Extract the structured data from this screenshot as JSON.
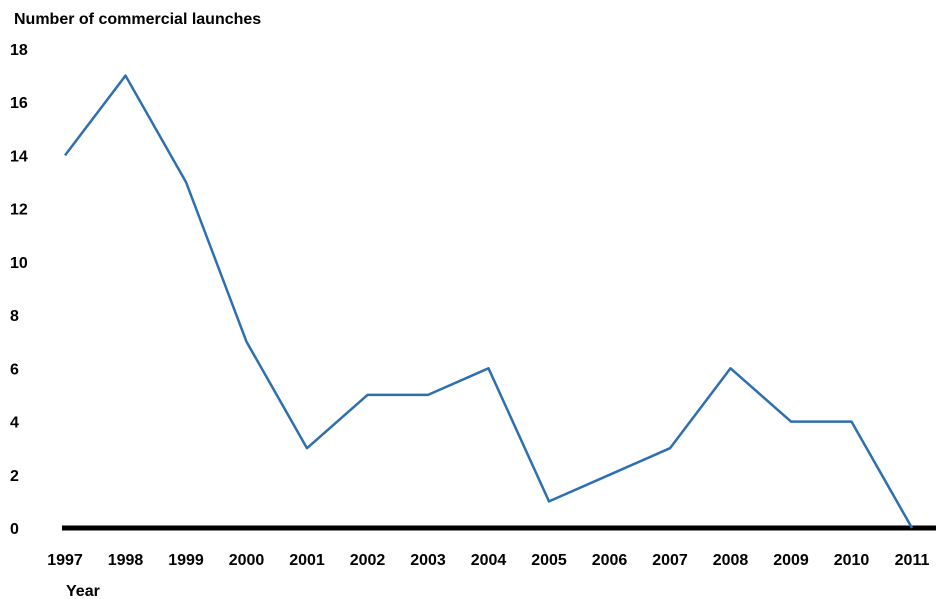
{
  "chart_data": {
    "type": "line",
    "title": "",
    "ylabel": "Number of commercial launches",
    "xlabel": "Year",
    "x": [
      "1997",
      "1998",
      "1999",
      "2000",
      "2001",
      "2002",
      "2003",
      "2004",
      "2005",
      "2006",
      "2007",
      "2008",
      "2009",
      "2010",
      "2011"
    ],
    "series": [
      {
        "values": [
          14,
          17,
          13,
          7,
          3,
          5,
          5,
          6,
          1,
          2,
          3,
          6,
          4,
          4,
          0
        ]
      }
    ],
    "ylim": [
      0,
      18
    ],
    "yticks": [
      "0",
      "2",
      "4",
      "6",
      "8",
      "10",
      "12",
      "14",
      "16",
      "18"
    ],
    "grid": false,
    "legend": "none",
    "colors": {
      "line": "#2e6fb0",
      "axis": "#000000"
    }
  }
}
